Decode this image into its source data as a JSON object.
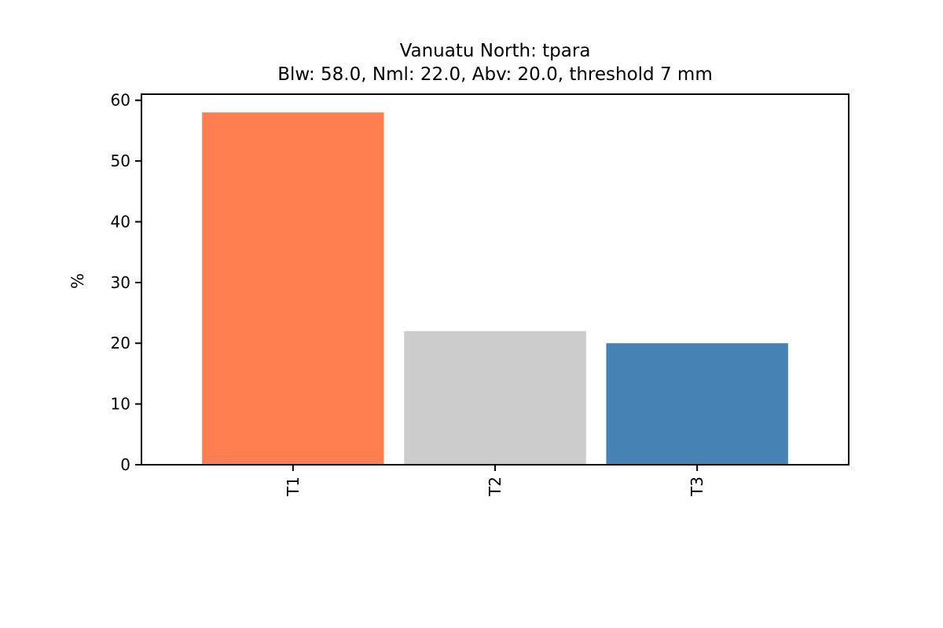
{
  "chart_data": {
    "type": "bar",
    "title": "Vanuatu North: tpara",
    "subtitle": "Blw: 58.0, Nml: 22.0, Abv: 20.0, threshold 7 mm",
    "xlabel": "",
    "ylabel": "%",
    "categories": [
      "T1",
      "T2",
      "T3"
    ],
    "values": [
      58.0,
      22.0,
      20.0
    ],
    "colors": [
      "#ff7f50",
      "#cccccc",
      "#4682b4"
    ],
    "ylim": [
      0,
      61
    ],
    "yticks": [
      0,
      10,
      20,
      30,
      40,
      50,
      60
    ],
    "grid": false,
    "legend": "none"
  }
}
